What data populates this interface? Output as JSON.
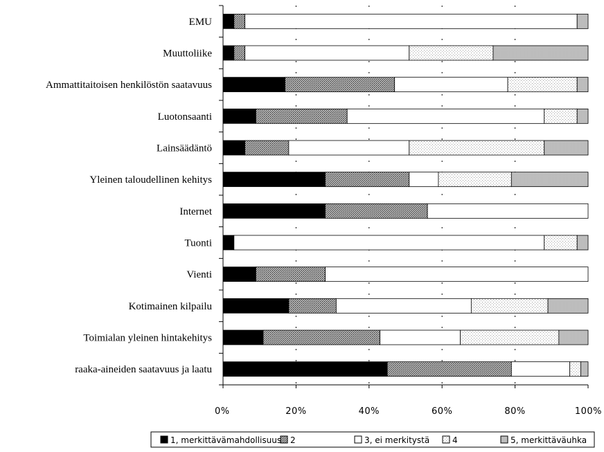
{
  "chart_data": {
    "type": "bar",
    "orientation": "horizontal",
    "stacked": true,
    "percent": true,
    "categories": [
      "EMU",
      "Muuttoliike",
      "Ammattitaitoisen henkilöstön saatavuus",
      "Luotonsaanti",
      "Lainsäädäntö",
      "Yleinen taloudellinen kehitys",
      "Internet",
      "Tuonti",
      "Vienti",
      "Kotimainen kilpailu",
      "Toimialan yleinen hintakehitys",
      "raaka-aineiden saatavuus ja laatu"
    ],
    "series": [
      {
        "name": "1, merkittävämahdollisuus",
        "fill": "solid-black",
        "values": [
          3,
          3,
          17,
          9,
          6,
          28,
          28,
          3,
          9,
          18,
          11,
          45
        ]
      },
      {
        "name": "2",
        "fill": "dense-dots",
        "values": [
          3,
          3,
          30,
          25,
          12,
          23,
          28,
          0,
          19,
          13,
          32,
          34
        ]
      },
      {
        "name": "3, ei merkitystä",
        "fill": "white",
        "values": [
          91,
          45,
          31,
          54,
          33,
          8,
          44,
          85,
          72,
          37,
          22,
          16
        ]
      },
      {
        "name": "4",
        "fill": "light-dots",
        "values": [
          0,
          23,
          19,
          9,
          37,
          20,
          0,
          9,
          0,
          21,
          27,
          3
        ]
      },
      {
        "name": "5, merkittäväuhka",
        "fill": "medium-dots",
        "values": [
          3,
          26,
          3,
          3,
          12,
          21,
          0,
          3,
          0,
          11,
          8,
          2
        ]
      }
    ],
    "xticks": [
      "0%",
      "20%",
      "40%",
      "60%",
      "80%",
      "100%"
    ],
    "xlim": [
      0,
      100
    ],
    "grid": "vertical dashed",
    "legend_position": "bottom"
  }
}
